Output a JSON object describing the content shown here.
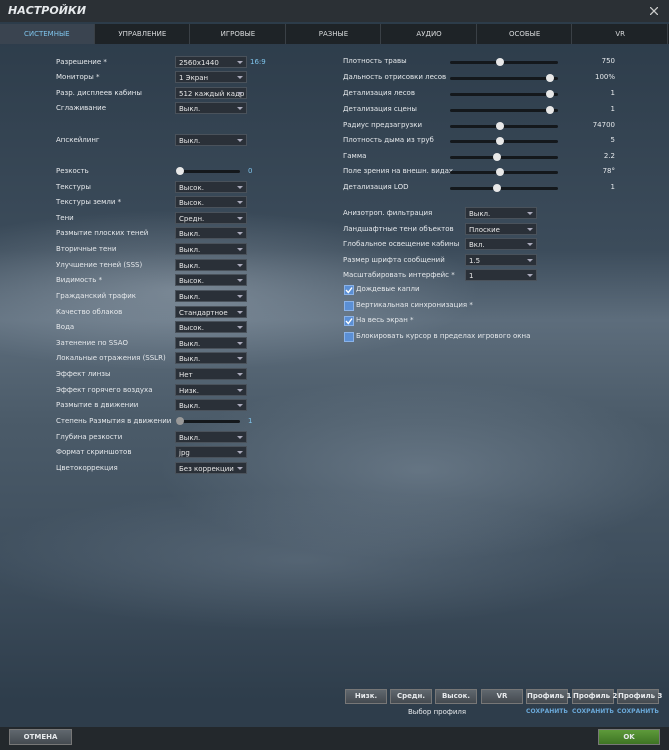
{
  "header": {
    "title": "НАСТРОЙКИ"
  },
  "tabs": [
    {
      "label": "СИСТЕМНЫЕ",
      "active": true
    },
    {
      "label": "УПРАВЛЕНИЕ",
      "active": false
    },
    {
      "label": "ИГРОВЫЕ",
      "active": false
    },
    {
      "label": "РАЗНЫЕ",
      "active": false
    },
    {
      "label": "АУДИО",
      "active": false
    },
    {
      "label": "ОСОБЫЕ",
      "active": false
    },
    {
      "label": "VR",
      "active": false
    }
  ],
  "left_settings": [
    {
      "label": "Разрешение *",
      "control": "dropdown",
      "value": "2560x1440",
      "note": "16:9"
    },
    {
      "label": "Мониторы *",
      "control": "dropdown",
      "value": "1 Экран"
    },
    {
      "label": "Разр. дисплеев кабины",
      "control": "dropdown",
      "value": "512 каждый кадр"
    },
    {
      "label": "Сглаживание",
      "control": "dropdown",
      "value": "Выкл."
    },
    {
      "label": "Апскейлинг",
      "control": "dropdown",
      "value": "Выкл."
    },
    {
      "label": "Резкость",
      "control": "slider",
      "value": "0"
    },
    {
      "label": "Текстуры",
      "control": "dropdown",
      "value": "Высок."
    },
    {
      "label": "Текстуры земли *",
      "control": "dropdown",
      "value": "Высок."
    },
    {
      "label": "Тени",
      "control": "dropdown",
      "value": "Средн."
    },
    {
      "label": "Размытие плоских теней",
      "control": "dropdown",
      "value": "Выкл."
    },
    {
      "label": "Вторичные тени",
      "control": "dropdown",
      "value": "Выкл."
    },
    {
      "label": "Улучшение теней (SSS)",
      "control": "dropdown",
      "value": "Выкл."
    },
    {
      "label": "Видимость *",
      "control": "dropdown",
      "value": "Высок."
    },
    {
      "label": "Гражданский трафик",
      "control": "dropdown",
      "value": "Выкл."
    },
    {
      "label": "Качество облаков",
      "control": "dropdown",
      "value": "Стандартное"
    },
    {
      "label": "Вода",
      "control": "dropdown",
      "value": "Высок."
    },
    {
      "label": "Затенение по SSAO",
      "control": "dropdown",
      "value": "Выкл."
    },
    {
      "label": "Локальные отражения (SSLR)",
      "control": "dropdown",
      "value": "Выкл."
    },
    {
      "label": "Эффект линзы",
      "control": "dropdown",
      "value": "Нет"
    },
    {
      "label": "Эффект горячего воздуха",
      "control": "dropdown",
      "value": "Низк."
    },
    {
      "label": "Размытие в движении",
      "control": "dropdown",
      "value": "Выкл."
    },
    {
      "label": "Степень Размытия в движении",
      "control": "slider",
      "value": "1"
    },
    {
      "label": "Глубина резкости",
      "control": "dropdown",
      "value": "Выкл."
    },
    {
      "label": "Формат скриншотов",
      "control": "dropdown",
      "value": "jpg"
    },
    {
      "label": "Цветокоррекция",
      "control": "dropdown",
      "value": "Без коррекции"
    }
  ],
  "sliders": [
    {
      "label": "Плотность травы",
      "value": "750"
    },
    {
      "label": "Дальность отрисовки лесов",
      "value": "100%"
    },
    {
      "label": "Детализация лесов",
      "value": "1"
    },
    {
      "label": "Детализация сцены",
      "value": "1"
    },
    {
      "label": "Радиус предзагрузки",
      "value": "74700"
    },
    {
      "label": "Плотность дыма из труб",
      "value": "5"
    },
    {
      "label": "Гамма",
      "value": "2.2"
    },
    {
      "label": "Поле зрения на внешн. видах",
      "value": "78°"
    },
    {
      "label": "Детализация LOD",
      "value": "1"
    }
  ],
  "right_settings": [
    {
      "label": "Анизотроп. фильтрация",
      "value": "Выкл."
    },
    {
      "label": "Ландшафтные тени объектов",
      "value": "Плоские"
    },
    {
      "label": "Глобальное освещение кабины",
      "value": "Вкл."
    },
    {
      "label": "Размер шрифта сообщений",
      "value": "1.5"
    },
    {
      "label": "Масштабировать интерфейс *",
      "value": "1"
    }
  ],
  "checkboxes": [
    {
      "label": "Дождевые капли",
      "checked": true
    },
    {
      "label": "Вертикальная синхронизация *",
      "checked": false
    },
    {
      "label": "На весь экран *",
      "checked": true
    },
    {
      "label": "Блокировать курсор в пределах игрового окна",
      "checked": false
    }
  ],
  "presets": [
    "Низк.",
    "Средн.",
    "Высок.",
    "VR"
  ],
  "preset_caption": "Выбор профиля",
  "profiles": [
    {
      "label": "Профиль 1",
      "action": "СОХРАНИТЬ"
    },
    {
      "label": "Профиль 2",
      "action": "СОХРАНИТЬ"
    },
    {
      "label": "Профиль 3",
      "action": "СОХРАНИТЬ"
    }
  ],
  "footer": {
    "cancel": "ОТМЕНА",
    "ok": "OK"
  }
}
